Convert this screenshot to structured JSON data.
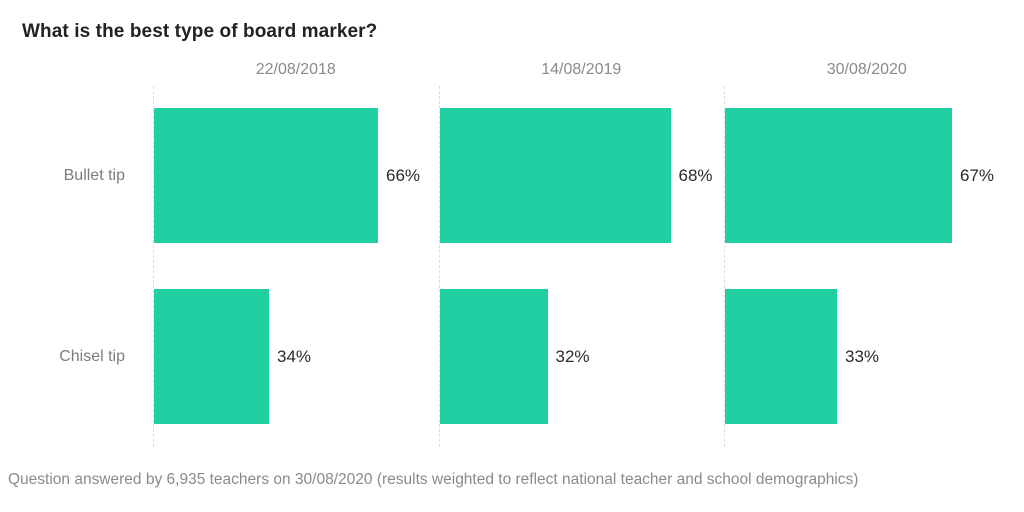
{
  "colors": {
    "bar": "#21cfa3",
    "title_text": "#222222",
    "muted_text": "#8a8a8a",
    "row_label_text": "#7c7c7c",
    "value_text": "#2b2b2b",
    "axis_dashed_line": "#dedede",
    "background": "#ffffff"
  },
  "chart_data": {
    "type": "bar",
    "orientation": "horizontal",
    "title": "What is the best type of board marker?",
    "categories": [
      "Bullet tip",
      "Chisel tip"
    ],
    "panels": [
      "22/08/2018",
      "14/08/2019",
      "30/08/2020"
    ],
    "series": [
      {
        "name": "22/08/2018",
        "values": [
          66,
          34
        ],
        "labels": [
          "66%",
          "34%"
        ]
      },
      {
        "name": "14/08/2019",
        "values": [
          68,
          32
        ],
        "labels": [
          "68%",
          "32%"
        ]
      },
      {
        "name": "30/08/2020",
        "values": [
          67,
          33
        ],
        "labels": [
          "67%",
          "33%"
        ]
      }
    ],
    "value_suffix": "%",
    "xlim": [
      0,
      84
    ],
    "grid": "dashed left axis line per panel",
    "legend": "none",
    "footnote": "Question answered by 6,935 teachers on 30/08/2020 (results weighted to reflect national teacher and school demographics)"
  }
}
